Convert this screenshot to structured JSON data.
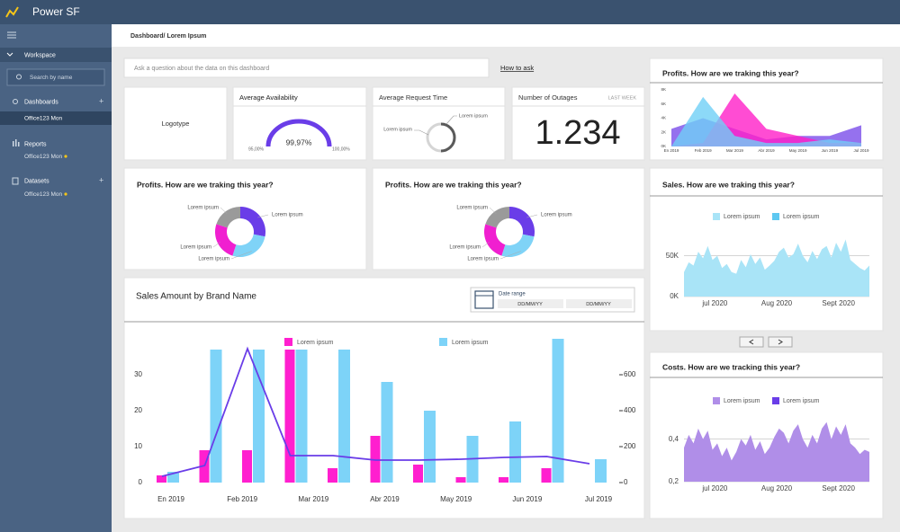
{
  "header": {
    "title": "Power SF"
  },
  "sidebar": {
    "workspace": "Workspace",
    "search": "Search by name",
    "sections": [
      {
        "label": "Dashboards",
        "item": "Office123 Mon"
      },
      {
        "label": "Reports",
        "item": "Office123 Mon"
      },
      {
        "label": "Datasets",
        "item": "Office123 Mon"
      }
    ]
  },
  "breadcrumb": "Dashboard/ Lorem Ipsum",
  "qa": {
    "placeholder": "Ask a question about the data on this dashboard",
    "link": "How to ask"
  },
  "kpis": {
    "logo": "Logotype",
    "availability": {
      "title": "Average Availability",
      "value": "99,97%",
      "min": "95,00%",
      "max": "100,00%"
    },
    "request_time": {
      "title": "Average Request Time",
      "labels": [
        "Lorem ipsum",
        "Lorem ipsum"
      ]
    },
    "outages": {
      "title": "Number of Outages",
      "period": "LAST WEEK",
      "value": "1.234"
    }
  },
  "date_range": {
    "label": "Date range",
    "from": "DD/MM/YY",
    "to": "DD/MM/YY"
  },
  "chart_data": [
    {
      "type": "area",
      "title": "Profits. How are we traking this year?",
      "categories": [
        "En 2019",
        "Feb 2019",
        "Mar 2019",
        "Abr 2019",
        "May 2019",
        "Jun 2019",
        "Jul 2019"
      ],
      "ylim": [
        0,
        8000
      ],
      "yticks": [
        {
          "value": 0,
          "label": "0K"
        },
        {
          "value": 2000,
          "label": "2K"
        },
        {
          "value": 4000,
          "label": "4K"
        },
        {
          "value": 6000,
          "label": "6K"
        },
        {
          "value": 8000,
          "label": "8K"
        }
      ],
      "series": [
        {
          "color": "#7b4dea",
          "values": [
            2500,
            4000,
            2500,
            1000,
            1500,
            1500,
            3000
          ]
        },
        {
          "color": "#ff1fc8",
          "values": [
            0,
            500,
            7500,
            2500,
            1500,
            500,
            500
          ]
        },
        {
          "color": "#6fd0f6",
          "values": [
            0,
            7000,
            1500,
            500,
            500,
            1000,
            500
          ]
        }
      ]
    },
    {
      "type": "donut",
      "title": "Profits. How are we traking this year?",
      "series": [
        {
          "name": "Lorem ipsum",
          "value": 28,
          "color": "#6a3de8"
        },
        {
          "name": "Lorem ipsum",
          "value": 27,
          "color": "#7fd3f7"
        },
        {
          "name": "Lorem ipsum",
          "value": 25,
          "color": "#f01fd0"
        },
        {
          "name": "Lorem ipsum",
          "value": 20,
          "color": "#9a9a9a"
        }
      ]
    },
    {
      "type": "donut",
      "title": "Profits. How are we traking this year?",
      "series": [
        {
          "name": "Lorem ipsum",
          "value": 28,
          "color": "#6a3de8"
        },
        {
          "name": "Lorem ipsum",
          "value": 27,
          "color": "#7fd3f7"
        },
        {
          "name": "Lorem ipsum",
          "value": 25,
          "color": "#f01fd0"
        },
        {
          "name": "Lorem ipsum",
          "value": 20,
          "color": "#9a9a9a"
        }
      ]
    },
    {
      "type": "area",
      "title": "Sales. How are we traking this year?",
      "xtick_labels": [
        "jul 2020",
        "Aug 2020",
        "Sept 2020"
      ],
      "ylim": [
        0,
        75000
      ],
      "yticks": [
        {
          "value": 0,
          "label": "0K"
        },
        {
          "value": 50000,
          "label": "50K"
        }
      ],
      "grid": true,
      "series": [
        {
          "name": "Lorem ipsum",
          "color": "#a9e4f7",
          "values": [
            30000,
            42000,
            38000,
            55000,
            47000,
            62000,
            45000,
            50000,
            35000,
            40000,
            30000,
            28000,
            45000,
            36000,
            52000,
            40000,
            48000,
            33000,
            38000,
            44000,
            55000,
            60000,
            48000,
            52000,
            65000,
            50000,
            42000,
            56000,
            46000,
            58000,
            62000,
            48000,
            66000,
            55000,
            70000,
            45000,
            40000,
            35000,
            32000,
            38000
          ]
        },
        {
          "name": "Lorem ipsum",
          "color": "#5ec8f1"
        }
      ]
    },
    {
      "type": "bar",
      "title": "Sales Amount by Brand Name",
      "xtick_labels": [
        "En 2019",
        "Feb 2019",
        "Mar 2019",
        "Abr 2019",
        "May 2019",
        "Jun 2019",
        "Jul 2019"
      ],
      "ylim": [
        0,
        40
      ],
      "yticks": [
        0,
        10,
        20,
        30
      ],
      "y2lim": [
        0,
        800
      ],
      "y2ticks": [
        0,
        200,
        400,
        600
      ],
      "series": [
        {
          "name": "Lorem ipsum",
          "color": "#ff1fcf",
          "values": [
            2,
            9,
            9,
            37,
            4,
            13,
            5,
            1.5,
            1.5,
            4,
            null
          ]
        },
        {
          "name": "Lorem ipsum",
          "color": "#7dd3f8",
          "values": [
            3,
            37,
            37,
            37,
            37,
            28,
            20,
            13,
            17,
            40,
            6.5
          ]
        },
        {
          "type": "line",
          "axis": "y2",
          "color": "#6a3de8",
          "values": [
            35,
            95,
            745,
            150,
            150,
            125,
            125,
            130,
            140,
            145,
            105
          ]
        }
      ]
    },
    {
      "type": "area",
      "title": "Costs. How are we tracking this year?",
      "xtick_labels": [
        "jul 2020",
        "Aug 2020",
        "Sept 2020"
      ],
      "ylim": [
        0.2,
        0.5
      ],
      "yticks": [
        {
          "value": 0.2,
          "label": "0,2"
        },
        {
          "value": 0.4,
          "label": "0,4"
        }
      ],
      "grid": true,
      "series": [
        {
          "name": "Lorem ipsum",
          "color": "#b08ee8",
          "values": [
            0.36,
            0.42,
            0.38,
            0.45,
            0.4,
            0.44,
            0.35,
            0.38,
            0.32,
            0.36,
            0.3,
            0.34,
            0.4,
            0.37,
            0.42,
            0.35,
            0.39,
            0.33,
            0.36,
            0.41,
            0.45,
            0.43,
            0.38,
            0.44,
            0.47,
            0.4,
            0.36,
            0.42,
            0.38,
            0.45,
            0.48,
            0.4,
            0.46,
            0.42,
            0.47,
            0.38,
            0.36,
            0.33,
            0.35,
            0.34
          ]
        },
        {
          "name": "Lorem ipsum",
          "color": "#6a3de8"
        }
      ]
    }
  ]
}
